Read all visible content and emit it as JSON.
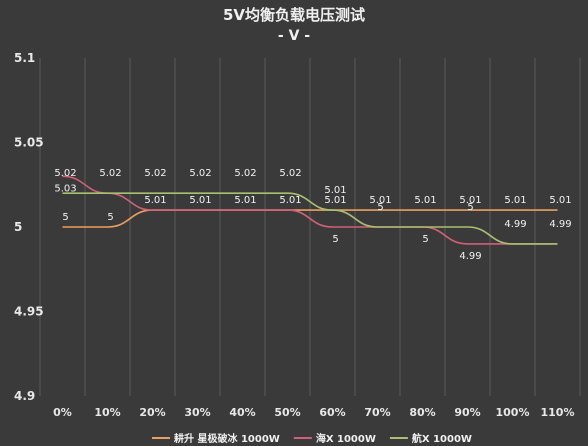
{
  "chart_data": {
    "type": "line",
    "title": "5V均衡负载电压测试",
    "subtitle": "- V -",
    "categories": [
      "0%",
      "10%",
      "20%",
      "30%",
      "40%",
      "50%",
      "60%",
      "70%",
      "80%",
      "90%",
      "100%",
      "110%"
    ],
    "ylim": [
      4.9,
      5.1
    ],
    "yticks": [
      "5.1",
      "5.05",
      "5",
      "4.95",
      "4.9"
    ],
    "grid": "vertical",
    "legend_position": "bottom",
    "series": [
      {
        "name": "耕升 星极破冰 1000W",
        "color": "#e8a060",
        "values": [
          5.0,
          5.0,
          5.01,
          5.01,
          5.01,
          5.01,
          5.01,
          5.01,
          5.01,
          5.01,
          5.01,
          5.01
        ],
        "labels": [
          "5",
          "5",
          "5.01",
          "5.01",
          "5.01",
          "5.01",
          "5.01",
          "5.01",
          "5.01",
          "5.01",
          "5.01",
          "5.01"
        ]
      },
      {
        "name": "海X 1000W",
        "color": "#d0607a",
        "values": [
          5.03,
          5.02,
          5.01,
          5.01,
          5.01,
          5.01,
          5.0,
          5.0,
          5.0,
          4.99,
          4.99,
          4.99
        ],
        "labels": [
          "5.03",
          "",
          "",
          "",
          "",
          "",
          "5",
          "",
          "5",
          "4.99",
          "",
          ""
        ]
      },
      {
        "name": "航X 1000W",
        "color": "#a8c070",
        "values": [
          5.02,
          5.02,
          5.02,
          5.02,
          5.02,
          5.02,
          5.01,
          5.0,
          5.0,
          5.0,
          4.99,
          4.99
        ],
        "labels": [
          "5.02",
          "5.02",
          "5.02",
          "5.02",
          "5.02",
          "5.02",
          "5.01",
          "5",
          "",
          "5",
          "4.99",
          "4.99"
        ]
      }
    ]
  }
}
